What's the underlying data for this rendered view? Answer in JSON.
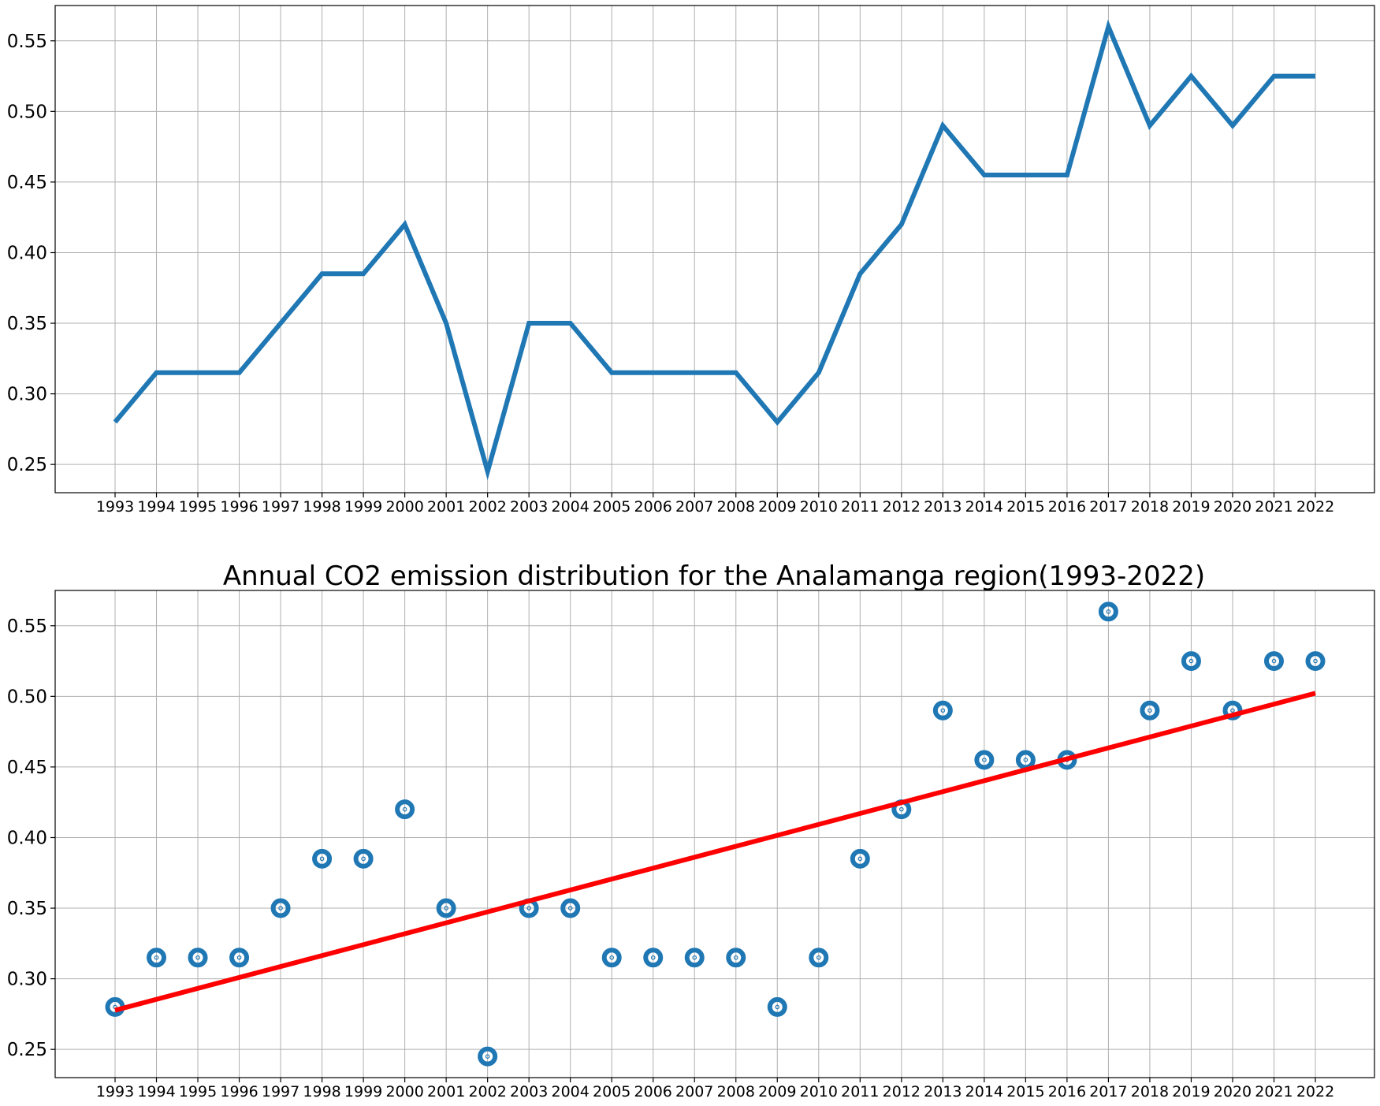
{
  "colors": {
    "series": "#1f77b4",
    "trend": "#ff0000",
    "grid": "#b0b0b0",
    "background": "#ffffff"
  },
  "chart_data": [
    {
      "type": "line",
      "title": "",
      "xlabel": "",
      "ylabel": "",
      "x": [
        1993,
        1994,
        1995,
        1996,
        1997,
        1998,
        1999,
        2000,
        2001,
        2002,
        2003,
        2004,
        2005,
        2006,
        2007,
        2008,
        2009,
        2010,
        2011,
        2012,
        2013,
        2014,
        2015,
        2016,
        2017,
        2018,
        2019,
        2020,
        2021,
        2022
      ],
      "series": [
        {
          "values": [
            0.28,
            0.315,
            0.315,
            0.315,
            0.35,
            0.385,
            0.385,
            0.42,
            0.35,
            0.245,
            0.35,
            0.35,
            0.315,
            0.315,
            0.315,
            0.315,
            0.28,
            0.315,
            0.385,
            0.42,
            0.49,
            0.455,
            0.455,
            0.455,
            0.56,
            0.49,
            0.525,
            0.49,
            0.525,
            0.525
          ]
        }
      ],
      "ylim": [
        0.23,
        0.575
      ],
      "yticks": [
        0.25,
        0.3,
        0.35,
        0.4,
        0.45,
        0.5,
        0.55
      ],
      "ytick_labels": [
        "0.25",
        "0.30",
        "0.35",
        "0.40",
        "0.45",
        "0.50",
        "0.55"
      ],
      "grid": true
    },
    {
      "type": "scatter",
      "title": "Annual CO2 emission distribution for the Analamanga region(1993-2022)",
      "xlabel": "",
      "ylabel": "",
      "x": [
        1993,
        1994,
        1995,
        1996,
        1997,
        1998,
        1999,
        2000,
        2001,
        2002,
        2003,
        2004,
        2005,
        2006,
        2007,
        2008,
        2009,
        2010,
        2011,
        2012,
        2013,
        2014,
        2015,
        2016,
        2017,
        2018,
        2019,
        2020,
        2021,
        2022
      ],
      "series": [
        {
          "values": [
            0.28,
            0.315,
            0.315,
            0.315,
            0.35,
            0.385,
            0.385,
            0.42,
            0.35,
            0.245,
            0.35,
            0.35,
            0.315,
            0.315,
            0.315,
            0.315,
            0.28,
            0.315,
            0.385,
            0.42,
            0.49,
            0.455,
            0.455,
            0.455,
            0.56,
            0.49,
            0.525,
            0.49,
            0.525,
            0.525
          ]
        }
      ],
      "trend_line": {
        "x": [
          1993,
          2022
        ],
        "y": [
          0.2777,
          0.5022
        ]
      },
      "ylim": [
        0.23,
        0.575
      ],
      "yticks": [
        0.25,
        0.3,
        0.35,
        0.4,
        0.45,
        0.5,
        0.55
      ],
      "ytick_labels": [
        "0.25",
        "0.30",
        "0.35",
        "0.40",
        "0.45",
        "0.50",
        "0.55"
      ],
      "grid": true
    }
  ]
}
